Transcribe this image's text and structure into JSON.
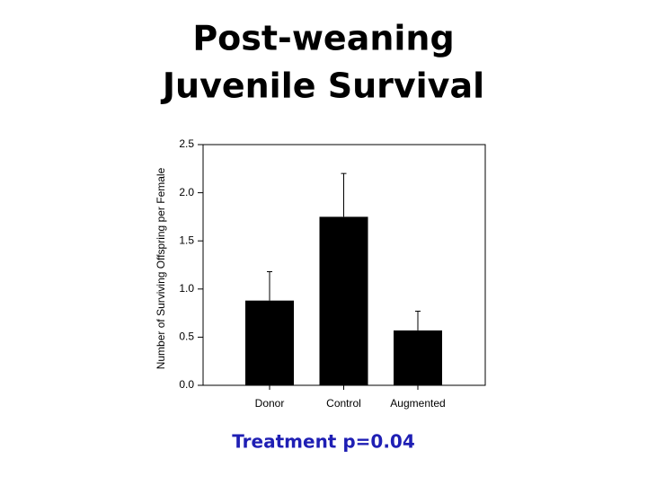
{
  "chart_data": {
    "type": "bar",
    "title": [
      "Post-weaning",
      "Juvenile Survival"
    ],
    "ylabel": "Number of Surviving Offspring per Female",
    "categories": [
      "Donor",
      "Control",
      "Augmented"
    ],
    "values": [
      0.88,
      1.75,
      0.57
    ],
    "errors": [
      0.3,
      0.45,
      0.2
    ],
    "color": "#000000",
    "ylim": [
      0,
      2.5
    ],
    "yticks": [
      {
        "value": 0,
        "label": "0.0"
      },
      {
        "value": 0.5,
        "label": "0.5"
      },
      {
        "value": 1,
        "label": "1.0"
      },
      {
        "value": 1.5,
        "label": "1.5"
      },
      {
        "value": 2,
        "label": "2.0"
      },
      {
        "value": 2.5,
        "label": "2.5"
      }
    ],
    "annotation": "Treatment p=0.04"
  }
}
